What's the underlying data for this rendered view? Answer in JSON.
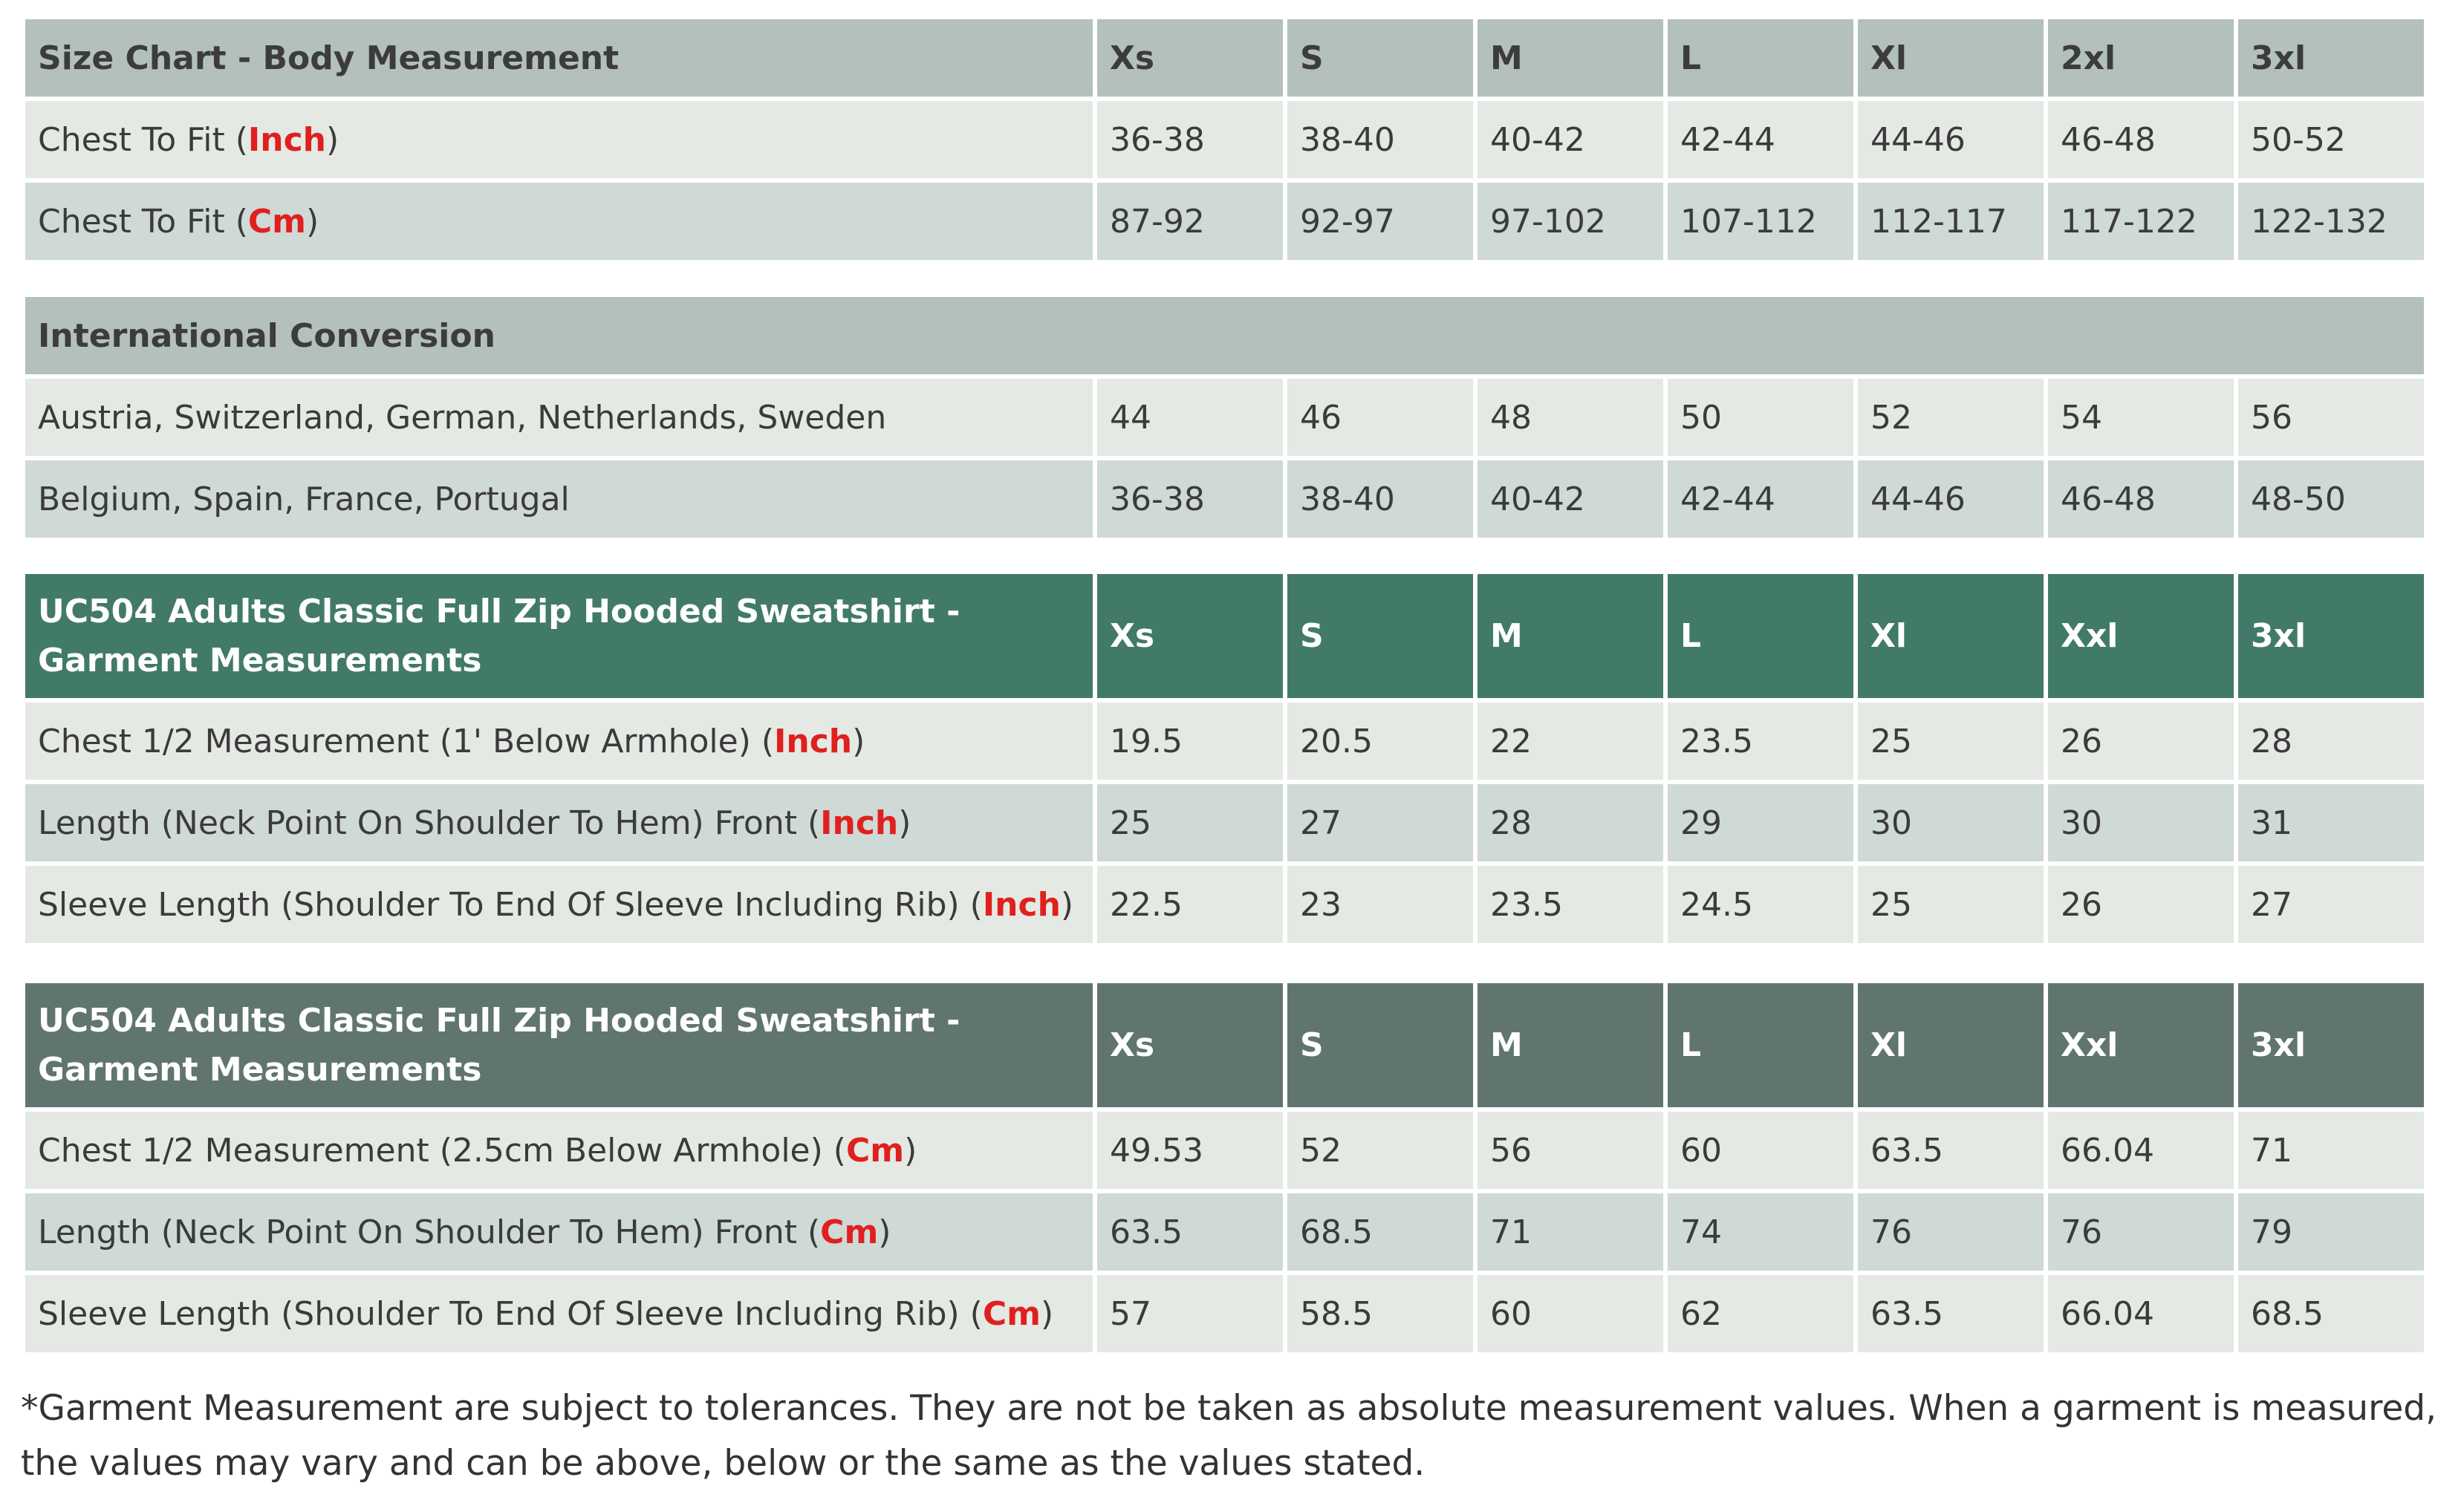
{
  "sizes_body": [
    "Xs",
    "S",
    "M",
    "L",
    "Xl",
    "2xl",
    "3xl"
  ],
  "sizes_garment": [
    "Xs",
    "S",
    "M",
    "L",
    "Xl",
    "Xxl",
    "3xl"
  ],
  "body_table": {
    "title": "Size Chart - Body Measurement",
    "rows": [
      {
        "label": "Chest To Fit (",
        "unit": "Inch",
        "close": ")",
        "values": [
          "36-38",
          "38-40",
          "40-42",
          "42-44",
          "44-46",
          "46-48",
          "50-52"
        ]
      },
      {
        "label": "Chest To Fit (",
        "unit": "Cm",
        "close": ")",
        "values": [
          "87-92",
          "92-97",
          "97-102",
          "107-112",
          "112-117",
          "117-122",
          "122-132"
        ]
      }
    ]
  },
  "conversion_table": {
    "title": "International Conversion",
    "rows": [
      {
        "label": "Austria, Switzerland, German, Netherlands, Sweden",
        "values": [
          "44",
          "46",
          "48",
          "50",
          "52",
          "54",
          "56"
        ]
      },
      {
        "label": "Belgium, Spain, France, Portugal",
        "values": [
          "36-38",
          "38-40",
          "40-42",
          "42-44",
          "44-46",
          "46-48",
          "48-50"
        ]
      }
    ]
  },
  "garment_inch_table": {
    "title": "UC504 Adults Classic Full Zip Hooded Sweatshirt - Garment Measurements",
    "rows": [
      {
        "label": "Chest 1/2 Measurement (1' Below Armhole) (",
        "unit": "Inch",
        "close": ")",
        "values": [
          "19.5",
          "20.5",
          "22",
          "23.5",
          "25",
          "26",
          "28"
        ]
      },
      {
        "label": "Length (Neck Point On Shoulder To Hem) Front (",
        "unit": "Inch",
        "close": ")",
        "values": [
          "25",
          "27",
          "28",
          "29",
          "30",
          "30",
          "31"
        ]
      },
      {
        "label": "Sleeve Length (Shoulder To End Of Sleeve Including Rib) (",
        "unit": "Inch",
        "close": ")",
        "values": [
          "22.5",
          "23",
          "23.5",
          "24.5",
          "25",
          "26",
          "27"
        ]
      }
    ]
  },
  "garment_cm_table": {
    "title": "UC504 Adults Classic Full Zip Hooded Sweatshirt - Garment Measurements",
    "rows": [
      {
        "label": "Chest 1/2 Measurement (2.5cm Below Armhole) (",
        "unit": "Cm",
        "close": ")",
        "values": [
          "49.53",
          "52",
          "56",
          "60",
          "63.5",
          "66.04",
          "71"
        ]
      },
      {
        "label": "Length (Neck Point On Shoulder To Hem) Front (",
        "unit": "Cm",
        "close": ")",
        "values": [
          "63.5",
          "68.5",
          "71",
          "74",
          "76",
          "76",
          "79"
        ]
      },
      {
        "label": "Sleeve Length (Shoulder To End Of Sleeve Including Rib) (",
        "unit": "Cm",
        "close": ")",
        "values": [
          "57",
          "58.5",
          "60",
          "62",
          "63.5",
          "66.04",
          "68.5"
        ]
      }
    ]
  },
  "footnote": "*Garment Measurement are subject to tolerances. They are not be taken as absolute measurement values. When a garment is measured, the values may vary and can be above, below or the same as the values stated.",
  "colors": {
    "header_gray": "#b3c0bb",
    "header_green": "#427a6a",
    "header_slate": "#617570",
    "row_light": "#e5e9e4",
    "row_dark": "#cfd9d5",
    "unit_red": "#e0201e"
  }
}
